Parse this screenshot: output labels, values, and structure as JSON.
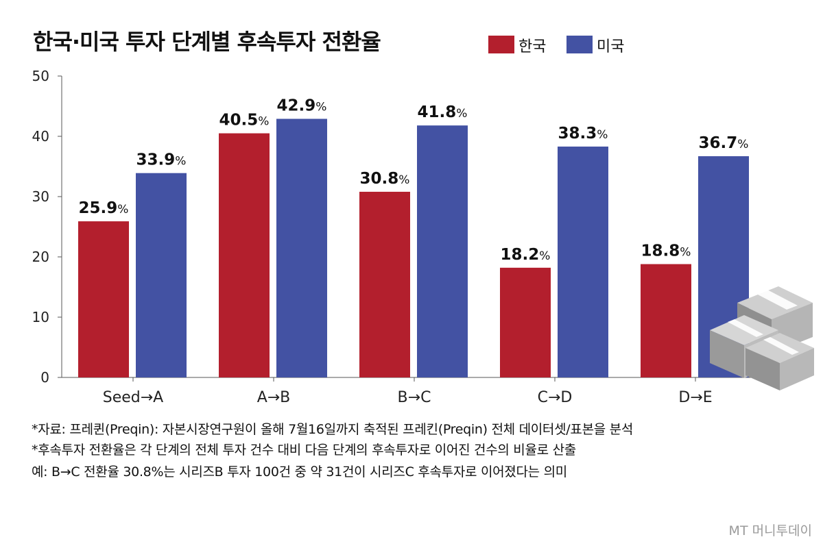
{
  "chart_data": {
    "type": "bar",
    "title": "한국·미국 투자 단계별 후속투자 전환율",
    "categories": [
      "Seed→A",
      "A→B",
      "B→C",
      "C→D",
      "D→E"
    ],
    "series": [
      {
        "name": "한국",
        "color": "#b31f2d",
        "values": [
          25.9,
          40.5,
          30.8,
          18.2,
          18.8
        ]
      },
      {
        "name": "미국",
        "color": "#4352a3",
        "values": [
          33.9,
          42.9,
          41.8,
          38.3,
          36.7
        ]
      }
    ],
    "value_suffix": "%",
    "ylim": [
      0,
      50
    ],
    "yticks": [
      0,
      10,
      20,
      30,
      40,
      50
    ],
    "xlabel": "",
    "ylabel": "",
    "grid": false,
    "legend_position": "top-right"
  },
  "footnotes": [
    "*자료: 프레퀸(Preqin): 자본시장연구원이 올해 7월16일까지 축적된 프레킨(Preqin) 전체 데이터셋/표본을 분석",
    "*후속투자 전환율은 각 단계의 전체 투자 건수 대비 다음 단계의 후속투자로 이어진 건수의 비율로 산출",
    " 예: B→C 전환율 30.8%는 시리즈B 투자 100건 중 약 31건이 시리즈C 후속투자로 이어졌다는 의미"
  ],
  "watermark": "MT 머니투데이",
  "illustration": "money-stack-icon"
}
